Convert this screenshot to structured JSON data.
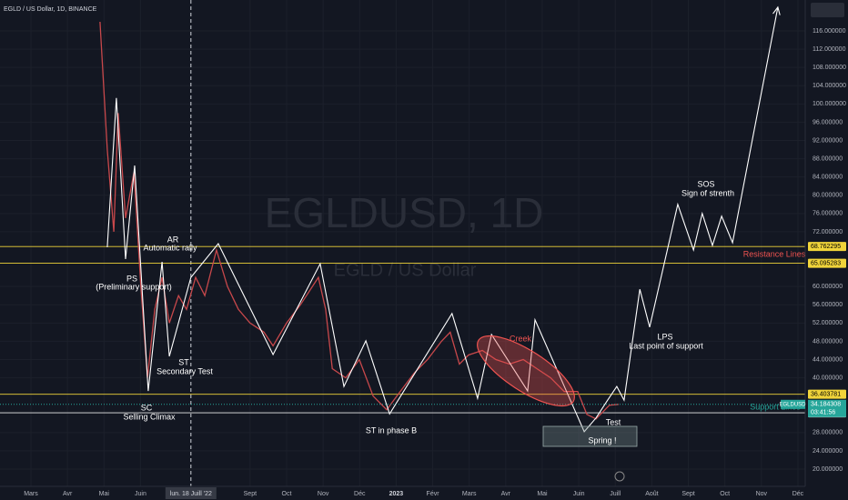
{
  "header": "EGLD / US Dollar, 1D, BINANCE",
  "watermark": {
    "symbol": "EGLDUSD, 1D",
    "name": "EGLD / US Dollar"
  },
  "chart_data": {
    "type": "line",
    "xlim": [
      -0.847,
      21.2
    ],
    "ylim": [
      13.23,
      122.77
    ],
    "xticks": [
      {
        "value": 0,
        "label": "Mars"
      },
      {
        "value": 1,
        "label": "Avr"
      },
      {
        "value": 2,
        "label": "Mai"
      },
      {
        "value": 3,
        "label": "Juin"
      },
      {
        "value": 6,
        "label": "Sept"
      },
      {
        "value": 7,
        "label": "Oct"
      },
      {
        "value": 8,
        "label": "Nov"
      },
      {
        "value": 9,
        "label": "Déc"
      },
      {
        "value": 10,
        "label": "2023"
      },
      {
        "value": 11,
        "label": "Févr"
      },
      {
        "value": 12,
        "label": "Mars"
      },
      {
        "value": 13,
        "label": "Avr"
      },
      {
        "value": 14,
        "label": "Mai"
      },
      {
        "value": 15,
        "label": "Juin"
      },
      {
        "value": 16,
        "label": "Juill"
      },
      {
        "value": 17,
        "label": "Août"
      },
      {
        "value": 18,
        "label": "Sept"
      },
      {
        "value": 19,
        "label": "Oct"
      },
      {
        "value": 20,
        "label": "Nov"
      },
      {
        "value": 21,
        "label": "Déc"
      }
    ],
    "crosshair": {
      "value": 4.38,
      "label": "lun. 18 Juill '22"
    },
    "yticks": [
      {
        "value": 20,
        "label": "20.000000"
      },
      {
        "value": 24,
        "label": "24.000000"
      },
      {
        "value": 28,
        "label": "28.000000"
      },
      {
        "value": 40,
        "label": "40.000000"
      },
      {
        "value": 44,
        "label": "44.000000"
      },
      {
        "value": 48,
        "label": "48.000000"
      },
      {
        "value": 52,
        "label": "52.000000"
      },
      {
        "value": 56,
        "label": "56.000000"
      },
      {
        "value": 60,
        "label": "60.000000"
      },
      {
        "value": 72,
        "label": "72.000000"
      },
      {
        "value": 76,
        "label": "76.000000"
      },
      {
        "value": 80,
        "label": "80.000000"
      },
      {
        "value": 84,
        "label": "84.000000"
      },
      {
        "value": 88,
        "label": "88.000000"
      },
      {
        "value": 92,
        "label": "92.000000"
      },
      {
        "value": 96,
        "label": "96.000000"
      },
      {
        "value": 100,
        "label": "100.000000"
      },
      {
        "value": 104,
        "label": "104.000000"
      },
      {
        "value": 108,
        "label": "108.000000"
      },
      {
        "value": 112,
        "label": "112.000000"
      },
      {
        "value": 116,
        "label": "116.000000"
      }
    ],
    "series": [
      {
        "name": "EGLDUSD",
        "color": "#c8484b",
        "x": [
          1.89,
          2.09,
          2.27,
          2.39,
          2.59,
          2.82,
          3.01,
          3.19,
          3.39,
          3.59,
          3.79,
          4.04,
          4.26,
          4.51,
          4.76,
          5.08,
          5.38,
          5.68,
          6.0,
          6.38,
          6.63,
          7.0,
          7.38,
          7.87,
          8.07,
          8.25,
          8.62,
          8.99,
          9.37,
          9.74,
          10.11,
          10.49,
          10.86,
          11.24,
          11.48,
          11.73,
          11.98,
          12.36,
          12.73,
          13.1,
          13.48,
          13.85,
          14.23,
          14.6,
          14.97,
          15.22,
          15.47,
          15.84,
          16.09
        ],
        "values": [
          118,
          90,
          72,
          98,
          75,
          85,
          60,
          40,
          55,
          62,
          52,
          58,
          55,
          62,
          58,
          68,
          60,
          55,
          52,
          50,
          47,
          52,
          56,
          62,
          55,
          42,
          40,
          44,
          36,
          33,
          37,
          41,
          44,
          48,
          50,
          43,
          45,
          46,
          44,
          43,
          44,
          42,
          40,
          37,
          37,
          32,
          31,
          34,
          34.18
        ]
      },
      {
        "color": "#ffffff",
        "x": [
          2.09,
          2.34,
          2.59,
          2.84,
          3.21,
          3.59,
          3.79,
          4.38,
          5.13,
          6.63,
          7.92,
          8.57,
          9.17,
          9.82,
          11.53,
          12.23,
          12.61,
          13.6,
          13.8,
          15.15,
          15.47,
          15.79,
          16.04,
          16.24,
          16.67,
          16.94,
          17.71,
          18.14,
          18.38,
          18.66,
          18.91,
          19.21,
          20.45
        ],
        "values": [
          68.6,
          101.3,
          66.0,
          86.5,
          37.1,
          65.4,
          44.7,
          62.0,
          69.4,
          45.1,
          65.0,
          38.1,
          48.1,
          32.1,
          54.1,
          35.5,
          49.5,
          37.1,
          52.7,
          28.2,
          31.2,
          35.1,
          38.1,
          35.1,
          59.4,
          51.1,
          78.0,
          68.0,
          76.0,
          69.0,
          75.4,
          69.6,
          121.2
        ]
      }
    ],
    "levels": [
      {
        "value": 68.762295,
        "color": "#f0d43a"
      },
      {
        "value": 65.095283,
        "color": "#f0d43a"
      },
      {
        "value": 36.403781,
        "color": "#f0d43a"
      },
      {
        "value": 32.330711,
        "color": "#e8e8e8"
      }
    ],
    "last_price": 34.184308,
    "countdown": "03:41:56",
    "grid": true
  },
  "annotations": {
    "ar": "AR",
    "ar_text": "Automatic rally",
    "ps": "PS",
    "ps_text": "(Preliminary support)",
    "st": "ST",
    "st_text": "Secondary Test",
    "sc": "SC",
    "sc_text": "Selling Climax",
    "st_b": "ST in phase B",
    "creek": "Creek",
    "lps": "LPS",
    "lps_text": "Last point of support",
    "sos": "SOS",
    "sos_text": "Sign of strenth",
    "test": "Test",
    "spring": "Spring !",
    "resistance": "Resistance Lines",
    "support": "Support Lines",
    "tag": "EGLDUSD"
  }
}
